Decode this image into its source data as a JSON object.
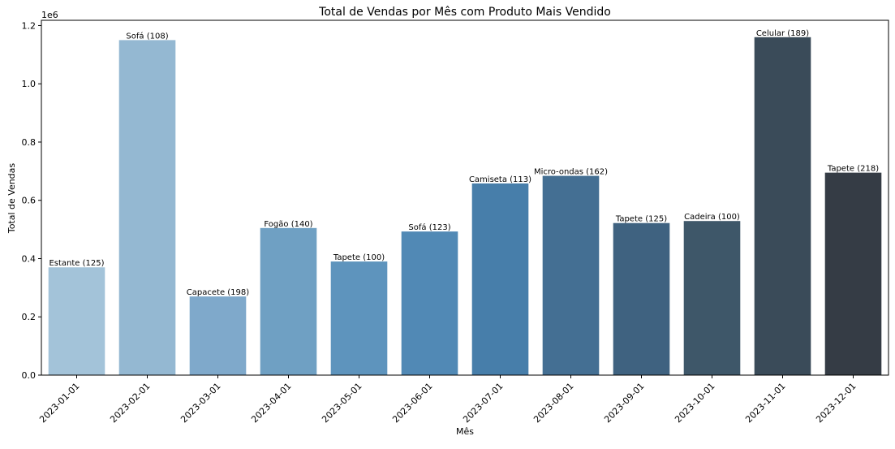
{
  "chart_data": {
    "type": "bar",
    "title": "Total de Vendas por Mês com Produto Mais Vendido",
    "xlabel": "Mês",
    "ylabel": "Total de Vendas",
    "y_offset_label": "1e6",
    "ylim": [
      0,
      1.218
    ],
    "yticks": [
      "0.0",
      "0.2",
      "0.4",
      "0.6",
      "0.8",
      "1.0",
      "1.2"
    ],
    "grid": false,
    "categories": [
      "2023-01-01",
      "2023-02-01",
      "2023-03-01",
      "2023-04-01",
      "2023-05-01",
      "2023-06-01",
      "2023-07-01",
      "2023-08-01",
      "2023-09-01",
      "2023-10-01",
      "2023-11-01",
      "2023-12-01"
    ],
    "values": [
      0.37,
      1.15,
      0.27,
      0.505,
      0.39,
      0.493,
      0.658,
      0.684,
      0.522,
      0.529,
      1.16,
      0.695
    ],
    "bar_labels": [
      "Estante (125)",
      "Sofá (108)",
      "Capacete (198)",
      "Fogão (140)",
      "Tapete (100)",
      "Sofá (123)",
      "Camiseta (113)",
      "Micro-ondas (162)",
      "Tapete (125)",
      "Cadeira (100)",
      "Celular (189)",
      "Tapete (218)"
    ],
    "colors": [
      "#a3c3d9",
      "#94b8d2",
      "#7fa9cb",
      "#6fa0c3",
      "#5e94bd",
      "#5189b5",
      "#477eaa",
      "#446f93",
      "#3f6280",
      "#3e5769",
      "#3a4b59",
      "#353c45"
    ]
  }
}
